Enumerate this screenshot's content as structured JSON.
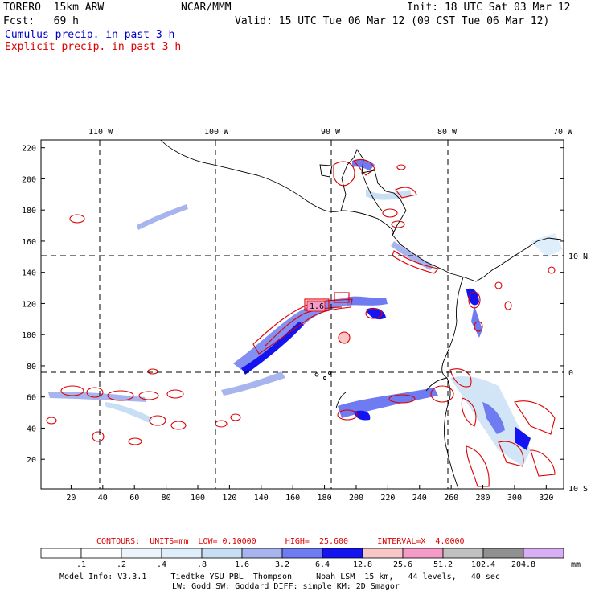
{
  "header": {
    "model": "TORERO  15km ARW",
    "org": "NCAR/MMM",
    "init": "Init: 18 UTC Sat 03 Mar 12",
    "fcst": "Fcst:   69 h",
    "valid": "Valid: 15 UTC Tue 06 Mar 12 (09 CST Tue 06 Mar 12)",
    "field_cumulus": "Cumulus precip. in past 3 h",
    "field_explicit": "Explicit precip. in past 3 h"
  },
  "colors": {
    "cumulus_title": "#0000cc",
    "explicit_title": "#dd0000",
    "contour": "#dd0000",
    "coast": "#000000"
  },
  "map": {
    "lon_labels": [
      "110 W",
      "100 W",
      "90 W",
      "80 W",
      "70 W"
    ],
    "lat_labels": [
      "10 N",
      "0",
      "10 S"
    ],
    "x_ticks": [
      "20",
      "40",
      "60",
      "80",
      "100",
      "120",
      "140",
      "160",
      "180",
      "200",
      "220",
      "240",
      "260",
      "280",
      "300",
      "320"
    ],
    "y_ticks": [
      "20",
      "40",
      "60",
      "80",
      "100",
      "120",
      "140",
      "160",
      "180",
      "200",
      "220"
    ],
    "grid_x_range": [
      1,
      331
    ],
    "grid_y_range": [
      1,
      225
    ],
    "annotation_high": "1.6"
  },
  "contour_info": {
    "text": "CONTOURS:  UNITS=mm  LOW= 0.10000      HIGH=  25.600      INTERVAL=X  4.0000"
  },
  "colorbar": {
    "labels": [
      ".1",
      ".2",
      ".4",
      ".8",
      "1.6",
      "3.2",
      "6.4",
      "12.8",
      "25.6",
      "51.2",
      "102.4",
      "204.8"
    ],
    "units": "mm",
    "colors": [
      "#ffffff",
      "#ffffff",
      "#eef4fb",
      "#dfeefb",
      "#c7def5",
      "#a8b4ee",
      "#6f7bf0",
      "#1414f0",
      "#f7c6c6",
      "#f59bc8",
      "#c0c0c0",
      "#909090",
      "#d8aef5"
    ]
  },
  "footer": {
    "line1": "Model Info: V3.3.1     Tiedtke YSU PBL  Thompson     Noah LSM  15 km,   44 levels,   40 sec",
    "line2": "LW: Godd SW: Goddard DIFF: simple KM: 2D Smagor"
  }
}
